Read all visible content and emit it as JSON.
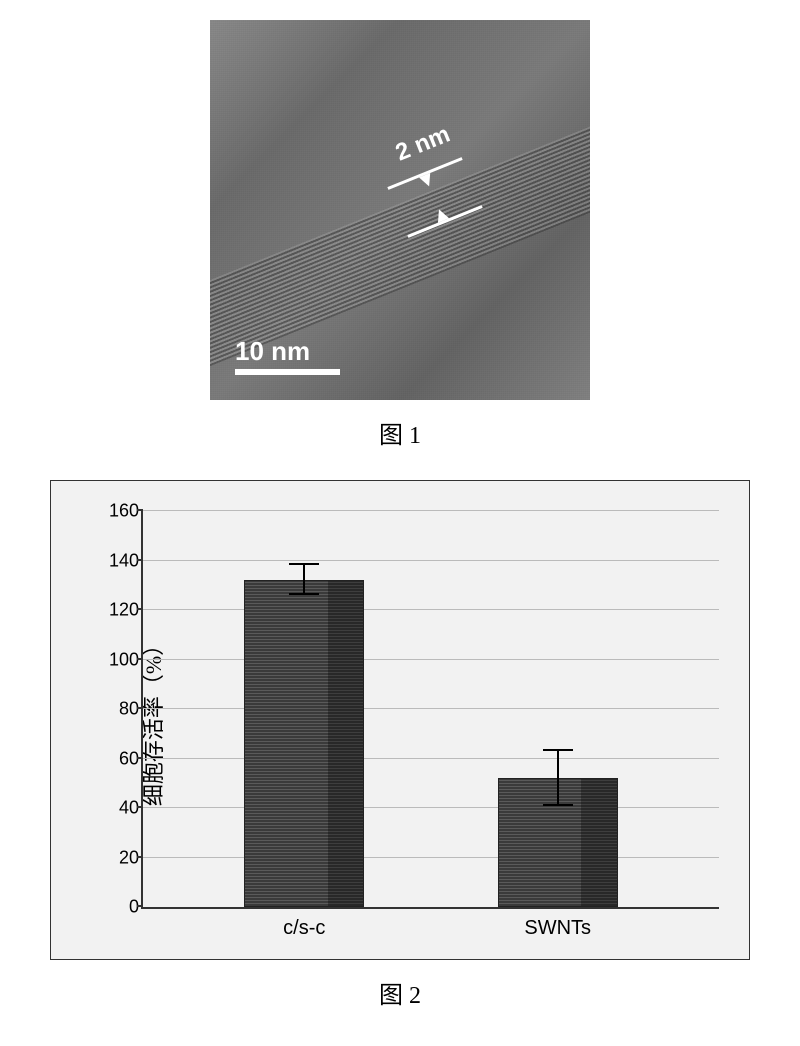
{
  "figure1": {
    "caption": "图 1",
    "dimension_label": "2 nm",
    "scale_label": "10 nm",
    "background_color": "#757575",
    "tube_angle_deg": -22,
    "scale_bar_color": "#ffffff",
    "label_color": "#ffffff"
  },
  "figure2": {
    "caption": "图 2",
    "chart": {
      "type": "bar",
      "y_label": "细胞存活率（%）",
      "ylim": [
        0,
        160
      ],
      "ytick_step": 20,
      "y_ticks": [
        0,
        20,
        40,
        60,
        80,
        100,
        120,
        140,
        160
      ],
      "categories": [
        "c/s-c",
        "SWNTs"
      ],
      "values": [
        132,
        52
      ],
      "errors": [
        6,
        11
      ],
      "bar_color": "#444444",
      "bar_width_ratio": 0.33,
      "bar_positions_pct": [
        28,
        72
      ],
      "background_color": "#f2f2f2",
      "grid_color": "#bbbbbb",
      "border_color": "#333333",
      "tick_fontsize": 18,
      "label_fontsize": 22,
      "xtick_fontsize": 20
    }
  }
}
